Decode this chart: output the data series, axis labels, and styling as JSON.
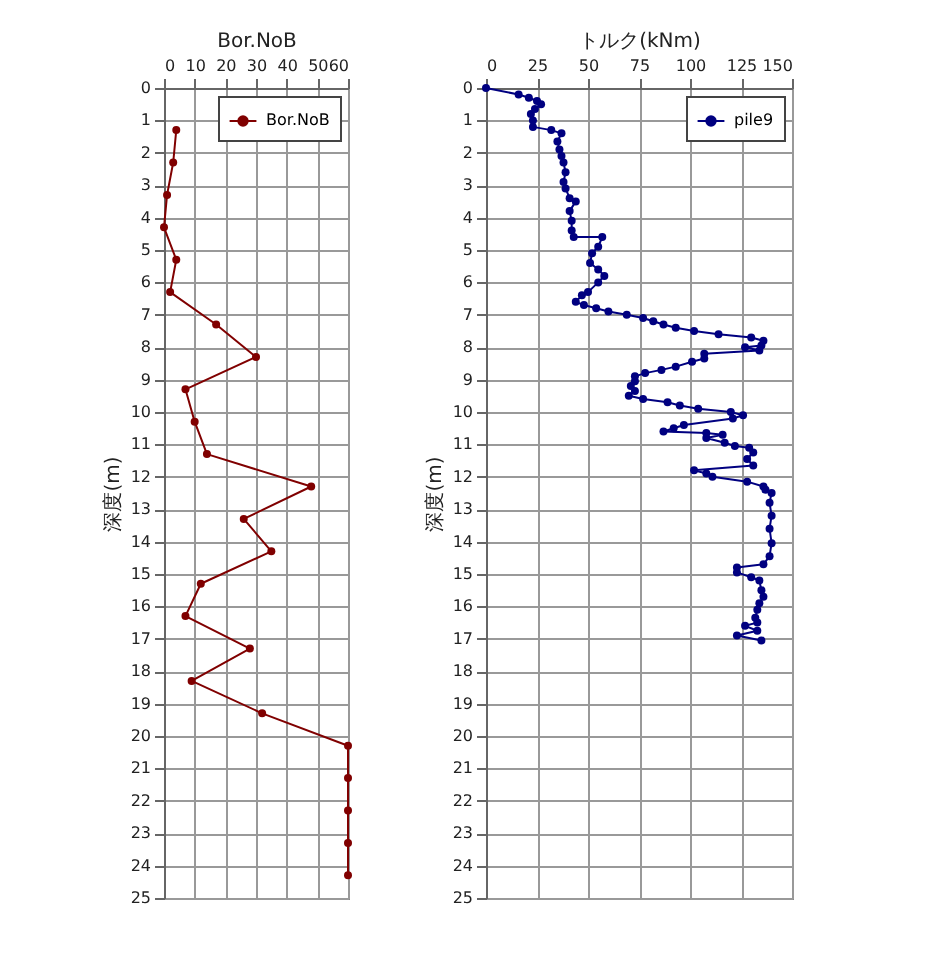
{
  "chart_data": [
    {
      "type": "line",
      "xlabel": "Bor.NoB",
      "ylabel": "深度(m)",
      "series": [
        {
          "name": "Bor.NoB",
          "color": "#800000",
          "x": [
            4,
            3,
            1,
            0,
            4,
            2,
            17,
            30,
            7,
            10,
            14,
            48,
            26,
            35,
            12,
            7,
            28,
            9,
            32,
            60,
            60,
            60,
            60,
            60
          ],
          "values": [
            1.3,
            2.3,
            3.3,
            4.3,
            5.3,
            6.3,
            7.3,
            8.3,
            9.3,
            10.3,
            11.3,
            12.3,
            13.3,
            14.3,
            15.3,
            16.3,
            17.3,
            18.3,
            19.3,
            20.3,
            21.3,
            22.3,
            23.3,
            24.3
          ]
        }
      ],
      "xlim": [
        0,
        60
      ],
      "xticks": [
        0,
        10,
        20,
        30,
        40,
        50,
        60
      ],
      "ylim": [
        25,
        0
      ],
      "yticks": [
        0,
        1,
        2,
        3,
        4,
        5,
        6,
        7,
        8,
        9,
        10,
        11,
        12,
        13,
        14,
        15,
        16,
        17,
        18,
        19,
        20,
        21,
        22,
        23,
        24,
        25
      ],
      "grid": true,
      "legend": "top right",
      "marker": "circle",
      "line_style": "solid"
    },
    {
      "type": "line",
      "xlabel": "トルク(kNm)",
      "ylabel": "深度(m)",
      "series": [
        {
          "name": "pile9",
          "color": "#000080",
          "x": [
            0,
            16,
            21,
            25,
            27,
            24,
            22,
            23,
            23,
            32,
            37,
            35,
            36,
            37,
            38,
            39,
            38,
            39,
            41,
            44,
            41,
            42,
            42,
            43,
            57,
            55,
            52,
            51,
            55,
            58,
            55,
            50,
            47,
            44,
            48,
            54,
            60,
            69,
            77,
            82,
            87,
            93,
            102,
            114,
            130,
            136,
            135,
            127,
            134,
            107,
            107,
            101,
            93,
            86,
            78,
            73,
            73,
            71,
            73,
            70,
            77,
            89,
            95,
            104,
            120,
            126,
            121,
            97,
            92,
            87,
            108,
            116,
            108,
            117,
            122,
            129,
            131,
            128,
            131,
            102,
            108,
            111,
            128,
            136,
            137,
            140,
            139,
            140,
            139,
            140,
            139,
            136,
            123,
            123,
            130,
            134,
            135,
            136,
            134,
            133,
            132,
            133,
            127,
            133,
            123,
            135
          ],
          "values": [
            0,
            0.2,
            0.3,
            0.4,
            0.5,
            0.65,
            0.8,
            1.0,
            1.2,
            1.3,
            1.4,
            1.65,
            1.9,
            2.1,
            2.3,
            2.6,
            2.9,
            3.1,
            3.4,
            3.5,
            3.8,
            4.1,
            4.4,
            4.6,
            4.6,
            4.9,
            5.1,
            5.4,
            5.6,
            5.8,
            6.0,
            6.3,
            6.4,
            6.6,
            6.7,
            6.8,
            6.9,
            7.0,
            7.1,
            7.2,
            7.3,
            7.4,
            7.5,
            7.6,
            7.7,
            7.8,
            7.95,
            8.0,
            8.1,
            8.2,
            8.35,
            8.45,
            8.6,
            8.7,
            8.8,
            8.9,
            9.05,
            9.2,
            9.35,
            9.5,
            9.6,
            9.7,
            9.8,
            9.9,
            10.0,
            10.1,
            10.2,
            10.4,
            10.5,
            10.6,
            10.65,
            10.7,
            10.8,
            10.95,
            11.05,
            11.1,
            11.25,
            11.45,
            11.65,
            11.8,
            11.9,
            12.0,
            12.15,
            12.3,
            12.4,
            12.5,
            12.8,
            13.2,
            13.6,
            14.05,
            14.45,
            14.7,
            14.8,
            14.95,
            15.1,
            15.2,
            15.5,
            15.7,
            15.9,
            16.1,
            16.35,
            16.5,
            16.6,
            16.75,
            16.9,
            17.05
          ]
        }
      ],
      "xlim": [
        0,
        150
      ],
      "xticks": [
        0,
        25,
        50,
        75,
        100,
        125,
        150
      ],
      "ylim": [
        25,
        0
      ],
      "yticks": [
        0,
        1,
        2,
        3,
        4,
        5,
        6,
        7,
        8,
        9,
        10,
        11,
        12,
        13,
        14,
        15,
        16,
        17,
        18,
        19,
        20,
        21,
        22,
        23,
        24,
        25
      ],
      "grid": true,
      "legend": "top right",
      "marker": "circle",
      "line_style": "solid"
    }
  ]
}
